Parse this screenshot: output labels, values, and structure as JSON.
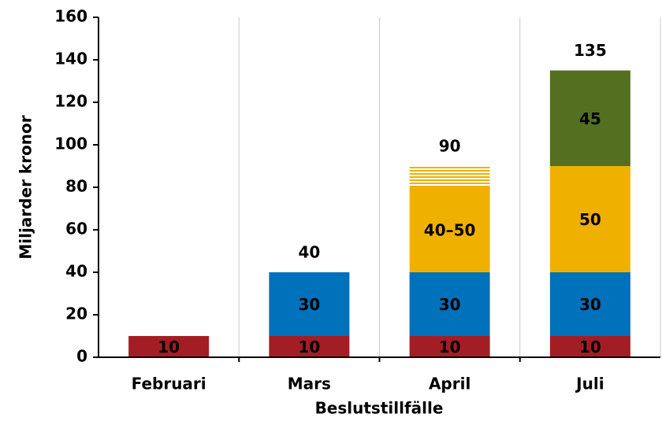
{
  "chart_data": {
    "type": "stacked-bar",
    "x_label": "Beslutstillfälle",
    "y_label": "Miljarder kronor",
    "categories": [
      "Februari",
      "Mars",
      "April",
      "Juli"
    ],
    "series": [
      {
        "color": "#a31d24",
        "values": [
          10,
          10,
          10,
          10
        ]
      },
      {
        "color": "#0071bb",
        "values": [
          null,
          30,
          30,
          30
        ]
      },
      {
        "color": "#f0b000",
        "values": [
          null,
          null,
          40,
          50
        ],
        "value_labels": [
          null,
          null,
          "40–50",
          null
        ]
      },
      {
        "color": "#f0b000",
        "pattern": "hatched",
        "values": [
          null,
          null,
          10,
          null
        ]
      },
      {
        "color": "#537021",
        "values": [
          null,
          null,
          null,
          45
        ]
      }
    ],
    "totals": [
      null,
      40,
      90,
      135
    ],
    "ylim": [
      0,
      160
    ],
    "yticks": [
      0,
      20,
      40,
      60,
      80,
      100,
      120,
      140,
      160
    ]
  }
}
